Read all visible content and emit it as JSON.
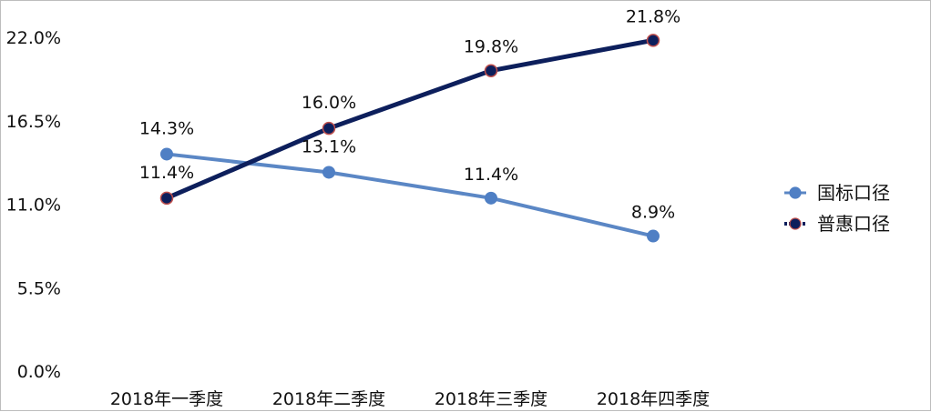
{
  "chart_data": {
    "type": "line",
    "categories": [
      "2018年一季度",
      "2018年二季度",
      "2018年三季度",
      "2018年四季度"
    ],
    "y_ticks": [
      "0.0%",
      "5.5%",
      "11.0%",
      "16.5%",
      "22.0%"
    ],
    "ylim": [
      0,
      22
    ],
    "grid": false,
    "legend": "right",
    "series": [
      {
        "name": "国标口径",
        "values": [
          14.3,
          13.1,
          11.4,
          8.9
        ],
        "labels": [
          "14.3%",
          "13.1%",
          "11.4%",
          "8.9%"
        ],
        "color": "#5b87c5",
        "marker_color": "#4f7fc4"
      },
      {
        "name": "普惠口径",
        "values": [
          11.4,
          16.0,
          19.8,
          21.8
        ],
        "labels": [
          "11.4%",
          "16.0%",
          "19.8%",
          "21.8%"
        ],
        "color": "#0d1f5c",
        "marker_color": "#0d1f5c",
        "marker_edge": "#c0504d"
      }
    ]
  }
}
